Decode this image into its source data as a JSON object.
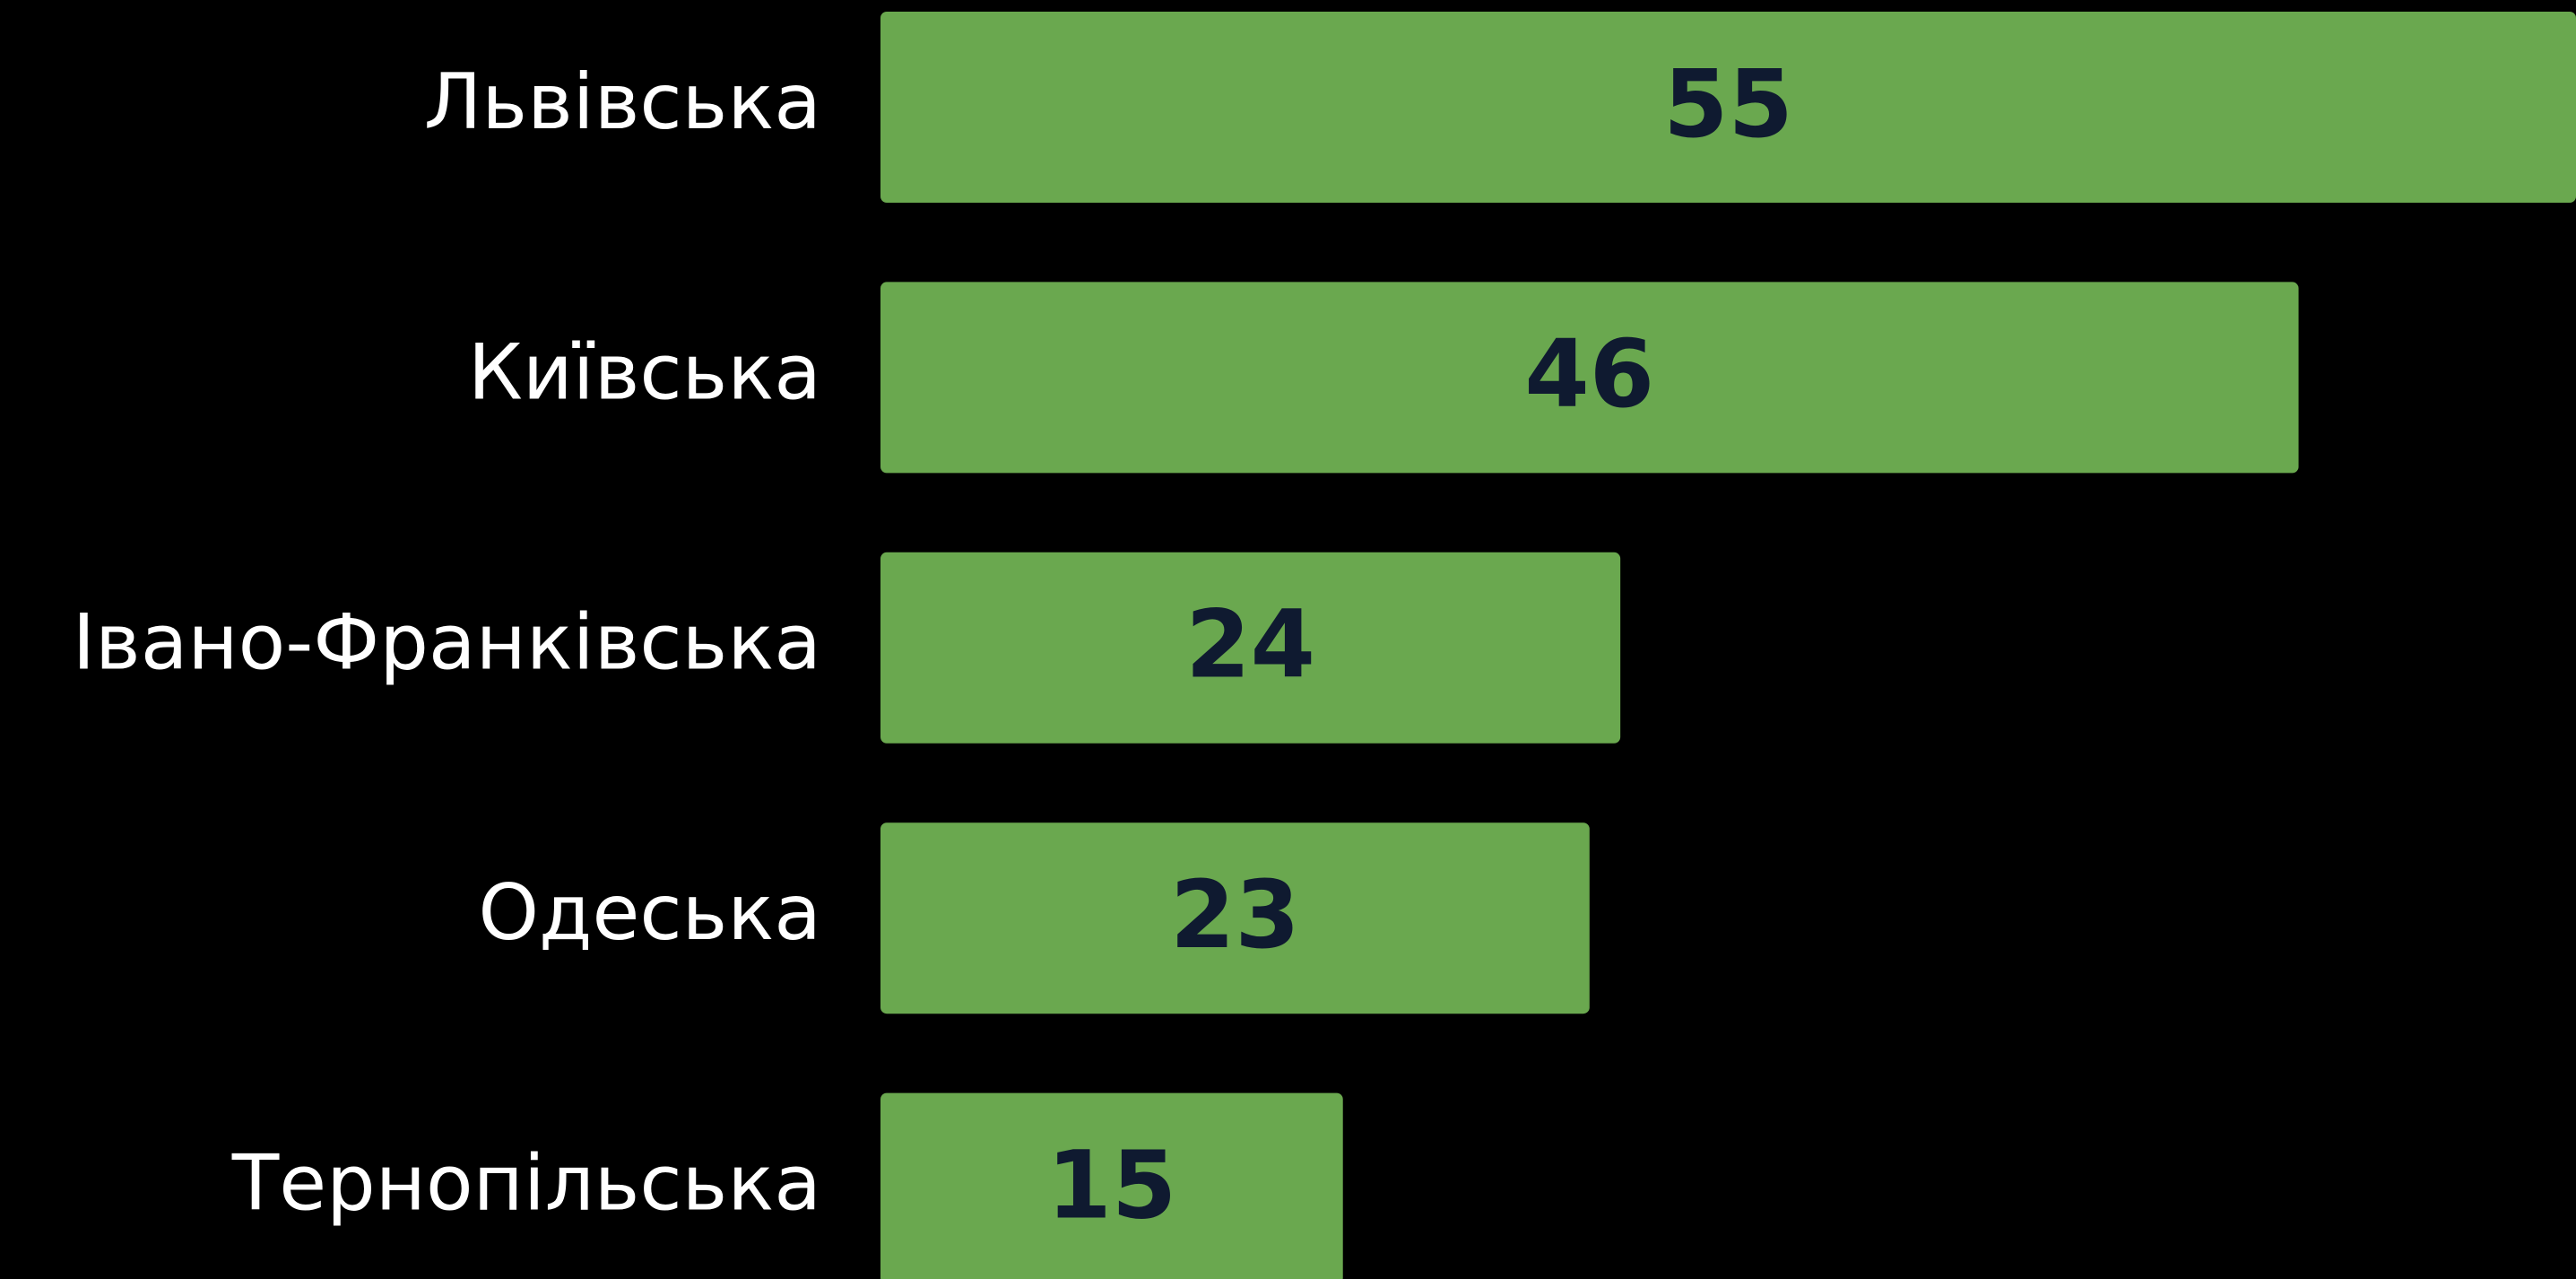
{
  "chart_data": {
    "type": "barh",
    "categories": [
      "Львівська",
      "Київська",
      "Івано-Франківська",
      "Одеська",
      "Тернопільська"
    ],
    "values": [
      55,
      46,
      24,
      23,
      15
    ],
    "color": "#6aa84f",
    "xlim": [
      0,
      55
    ]
  }
}
